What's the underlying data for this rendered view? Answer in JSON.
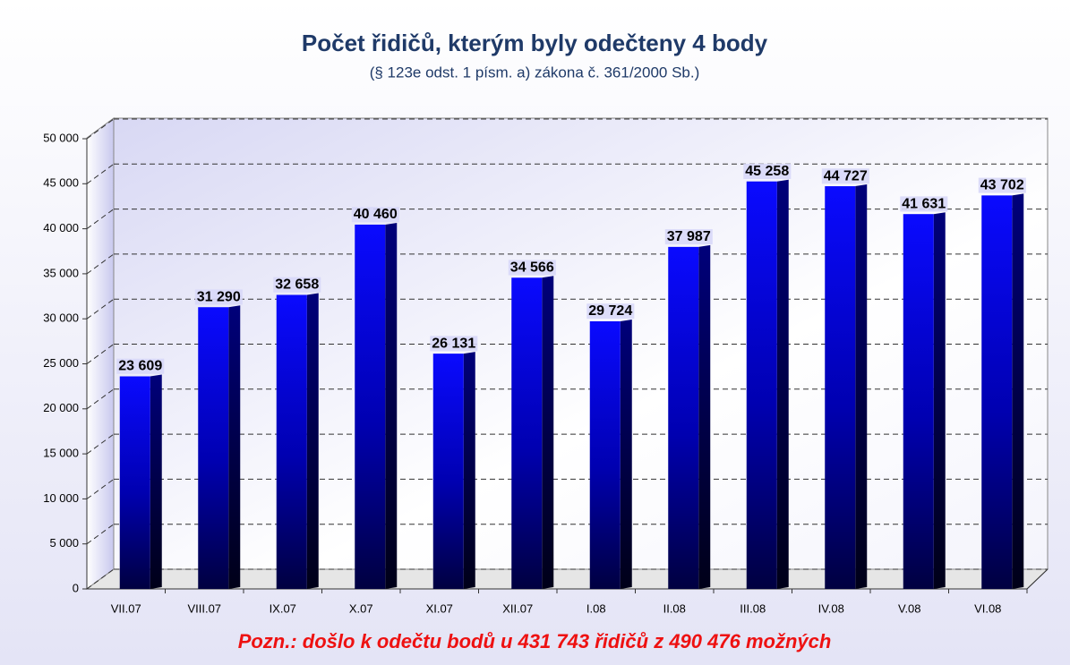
{
  "chart_data": {
    "type": "bar",
    "title": "Počet řidičů, kterým byly odečteny 4 body",
    "subtitle": "(§ 123e odst. 1 písm. a) zákona č. 361/2000 Sb.)",
    "annotation": "Pozn.: došlo k odečtu bodů u 431 743 řidičů z 490 476 možných",
    "categories": [
      "VII.07",
      "VIII.07",
      "IX.07",
      "X.07",
      "XI.07",
      "XII.07",
      "I.08",
      "II.08",
      "III.08",
      "IV.08",
      "V.08",
      "VI.08"
    ],
    "values": [
      23609,
      31290,
      32658,
      40460,
      26131,
      34566,
      29724,
      37987,
      45258,
      44727,
      41631,
      43702
    ],
    "value_labels": [
      "23 609",
      "31 290",
      "32 658",
      "40 460",
      "26 131",
      "34 566",
      "29 724",
      "37 987",
      "45 258",
      "44 727",
      "41 631",
      "43 702"
    ],
    "color": "#0000ff",
    "ylim": [
      0,
      50000
    ],
    "yticks": [
      0,
      {
        "value": 5000,
        "label": "5 000"
      },
      {
        "value": 10000,
        "label": "10 000"
      },
      {
        "value": 15000,
        "label": "15 000"
      },
      {
        "value": 20000,
        "label": "20 000"
      },
      {
        "value": 25000,
        "label": "25 000"
      },
      {
        "value": 30000,
        "label": "30 000"
      },
      {
        "value": 35000,
        "label": "35 000"
      },
      {
        "value": 40000,
        "label": "40 000"
      },
      {
        "value": 45000,
        "label": "45 000"
      },
      {
        "value": 50000,
        "label": "50 000"
      }
    ],
    "grid": true
  }
}
